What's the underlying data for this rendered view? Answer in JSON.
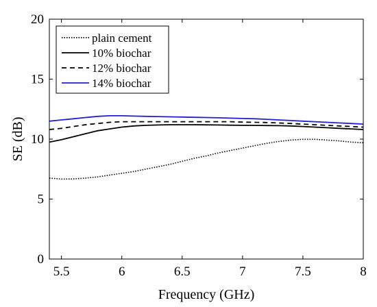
{
  "chart_data": {
    "type": "line",
    "title": "",
    "xlabel": "Frequency (GHz)",
    "ylabel": "SE (dB)",
    "xlim": [
      5.4,
      8.0
    ],
    "ylim": [
      0,
      20
    ],
    "xticks": [
      "5.5",
      "6",
      "6.5",
      "7",
      "7.5",
      "8"
    ],
    "xtick_values": [
      5.5,
      6.0,
      6.5,
      7.0,
      7.5,
      8.0
    ],
    "yticks": [
      "0",
      "5",
      "10",
      "15",
      "20"
    ],
    "ytick_values": [
      0,
      5,
      10,
      15,
      20
    ],
    "grid": false,
    "legend_position": "top-left",
    "series": [
      {
        "name": "plain cement",
        "color": "#000000",
        "style": "dotted",
        "x": [
          5.4,
          5.5,
          5.6,
          5.7,
          5.8,
          5.9,
          6.0,
          6.1,
          6.2,
          6.3,
          6.4,
          6.5,
          6.6,
          6.7,
          6.8,
          6.9,
          7.0,
          7.1,
          7.2,
          7.3,
          7.4,
          7.5,
          7.6,
          7.7,
          7.8,
          7.9,
          8.0
        ],
        "y": [
          6.75,
          6.67,
          6.68,
          6.75,
          6.85,
          7.0,
          7.15,
          7.3,
          7.5,
          7.7,
          7.9,
          8.15,
          8.4,
          8.6,
          8.85,
          9.05,
          9.25,
          9.45,
          9.65,
          9.8,
          9.92,
          9.98,
          9.98,
          9.92,
          9.85,
          9.75,
          9.7
        ]
      },
      {
        "name": "10% biochar",
        "color": "#000000",
        "style": "solid",
        "x": [
          5.4,
          5.5,
          5.6,
          5.7,
          5.8,
          5.9,
          6.0,
          6.1,
          6.2,
          6.3,
          6.4,
          6.5,
          6.6,
          6.7,
          6.8,
          6.9,
          7.0,
          7.1,
          7.2,
          7.3,
          7.4,
          7.5,
          7.6,
          7.7,
          7.8,
          7.9,
          8.0
        ],
        "y": [
          9.75,
          9.95,
          10.2,
          10.45,
          10.7,
          10.85,
          11.0,
          11.1,
          11.15,
          11.18,
          11.2,
          11.2,
          11.2,
          11.19,
          11.18,
          11.16,
          11.15,
          11.14,
          11.13,
          11.12,
          11.1,
          11.05,
          11.0,
          10.95,
          10.9,
          10.85,
          10.8
        ]
      },
      {
        "name": "12% biochar",
        "color": "#000000",
        "style": "dashed",
        "x": [
          5.4,
          5.5,
          5.6,
          5.7,
          5.8,
          5.9,
          6.0,
          6.1,
          6.2,
          6.3,
          6.4,
          6.5,
          6.6,
          6.7,
          6.8,
          6.9,
          7.0,
          7.1,
          7.2,
          7.3,
          7.4,
          7.5,
          7.6,
          7.7,
          7.8,
          7.9,
          8.0
        ],
        "y": [
          10.8,
          10.9,
          11.05,
          11.2,
          11.3,
          11.4,
          11.45,
          11.45,
          11.45,
          11.45,
          11.45,
          11.45,
          11.45,
          11.45,
          11.45,
          11.45,
          11.42,
          11.4,
          11.38,
          11.35,
          11.3,
          11.25,
          11.2,
          11.15,
          11.1,
          11.05,
          11.0
        ]
      },
      {
        "name": "14% biochar",
        "color": "#1f1fd6",
        "style": "solid",
        "x": [
          5.4,
          5.5,
          5.6,
          5.7,
          5.8,
          5.9,
          6.0,
          6.1,
          6.2,
          6.3,
          6.4,
          6.5,
          6.6,
          6.7,
          6.8,
          6.9,
          7.0,
          7.1,
          7.2,
          7.3,
          7.4,
          7.5,
          7.6,
          7.7,
          7.8,
          7.9,
          8.0
        ],
        "y": [
          11.5,
          11.6,
          11.7,
          11.8,
          11.9,
          11.95,
          11.95,
          11.92,
          11.9,
          11.88,
          11.86,
          11.84,
          11.82,
          11.8,
          11.78,
          11.75,
          11.72,
          11.7,
          11.65,
          11.6,
          11.55,
          11.5,
          11.45,
          11.4,
          11.35,
          11.3,
          11.25
        ]
      }
    ]
  }
}
